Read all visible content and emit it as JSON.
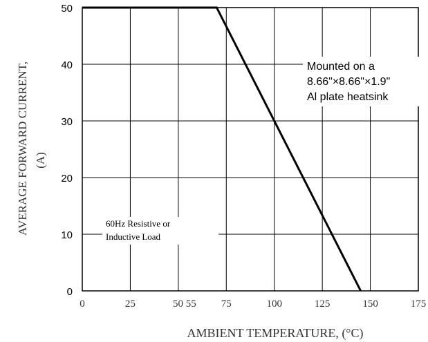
{
  "chart_data": {
    "type": "line",
    "title": "",
    "ylabel_line1": "AVERAGE  FORWARD  CURRENT,",
    "ylabel_line2": "(A)",
    "xlabel": "AMBIENT  TEMPERATURE,  (°C)",
    "x_ticks": [
      {
        "value": 0,
        "label": "0"
      },
      {
        "value": 25,
        "label": "25"
      },
      {
        "value": 55,
        "label": "50 55"
      },
      {
        "value": 75,
        "label": "75"
      },
      {
        "value": 100,
        "label": "100"
      },
      {
        "value": 125,
        "label": "125"
      },
      {
        "value": 150,
        "label": "150"
      },
      {
        "value": 175,
        "label": "175"
      }
    ],
    "x_gridlines": [
      25,
      50,
      75,
      100,
      125,
      150
    ],
    "y_ticks": [
      {
        "value": 0,
        "label": "0"
      },
      {
        "value": 10,
        "label": "10"
      },
      {
        "value": 20,
        "label": "20"
      },
      {
        "value": 30,
        "label": "30"
      },
      {
        "value": 40,
        "label": "40"
      },
      {
        "value": 50,
        "label": "50"
      }
    ],
    "xlim": [
      0,
      175
    ],
    "ylim": [
      0,
      50
    ],
    "grid": true,
    "series": [
      {
        "name": "",
        "color": "#000000",
        "x": [
          0,
          70,
          145
        ],
        "y": [
          50,
          50,
          0
        ]
      }
    ],
    "annotations": {
      "heatsink_lines": [
        "Mounted on a",
        "8.66\"×8.66\"×1.9\"",
        "Al plate heatsink"
      ],
      "load_lines": [
        "60Hz Resistive or",
        "Inductive Load"
      ]
    }
  }
}
